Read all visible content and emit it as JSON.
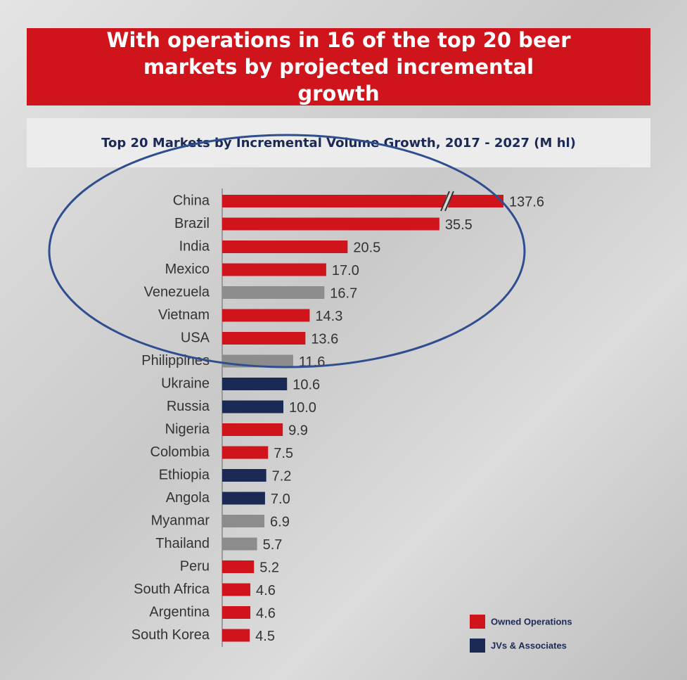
{
  "chart_data": {
    "type": "bar",
    "orientation": "horizontal",
    "title": "With operations in 16 of the top 20 beer markets by projected incremental growth",
    "subtitle": "Top 20 Markets by Incremental Volume Growth, 2017 - 2027 (M hl)",
    "categories": [
      "China",
      "Brazil",
      "India",
      "Mexico",
      "Venezuela",
      "Vietnam",
      "USA",
      "Philippines",
      "Ukraine",
      "Russia",
      "Nigeria",
      "Colombia",
      "Ethiopia",
      "Angola",
      "Myanmar",
      "Thailand",
      "Peru",
      "South Africa",
      "Argentina",
      "South Korea"
    ],
    "values": [
      137.6,
      35.5,
      20.5,
      17.0,
      16.7,
      14.3,
      13.6,
      11.6,
      10.6,
      10.0,
      9.9,
      7.5,
      7.2,
      7.0,
      6.9,
      5.7,
      5.2,
      4.6,
      4.6,
      4.5
    ],
    "value_labels": [
      "137.6",
      "35.5",
      "20.5",
      "17.0",
      "16.7",
      "14.3",
      "13.6",
      "11.6",
      "10.6",
      "10.0",
      "9.9",
      "7.5",
      "7.2",
      "7.0",
      "6.9",
      "5.7",
      "5.2",
      "4.6",
      "4.6",
      "4.5"
    ],
    "colors": [
      "#d0141c",
      "#d0141c",
      "#d0141c",
      "#d0141c",
      "#8c8c8c",
      "#d0141c",
      "#d0141c",
      "#8c8c8c",
      "#1b2a55",
      "#1b2a55",
      "#d0141c",
      "#d0141c",
      "#1b2a55",
      "#1b2a55",
      "#8c8c8c",
      "#8c8c8c",
      "#d0141c",
      "#d0141c",
      "#d0141c",
      "#d0141c"
    ],
    "legend": [
      {
        "name": "Owned Operations",
        "color": "#d0141c"
      },
      {
        "name": "JVs & Associates",
        "color": "#1b2a55"
      }
    ]
  }
}
